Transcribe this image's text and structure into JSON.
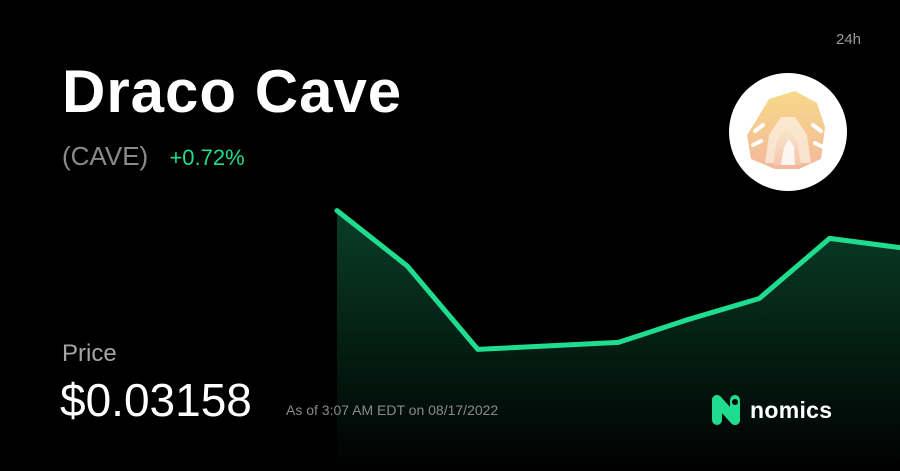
{
  "asset": {
    "name": "Draco Cave",
    "symbol": "(CAVE)",
    "change": "+0.72%",
    "timeframe": "24h",
    "logo_icon": "draco-cave-logo-icon"
  },
  "price": {
    "label": "Price",
    "value": "$0.03158",
    "as_of": "As of 3:07 AM EDT on 08/17/2022"
  },
  "brand": {
    "name": "nomics",
    "icon": "nomics-logo-icon"
  },
  "colors": {
    "background": "#000000",
    "positive": "#1fdc8f",
    "muted": "#8a8a8a"
  },
  "chart_data": {
    "type": "line",
    "x": [
      0,
      1,
      2,
      3,
      4,
      5,
      6,
      7,
      8
    ],
    "values": [
      100,
      76,
      40,
      41.5,
      43,
      53,
      62,
      88,
      84
    ],
    "ylim": [
      38,
      102
    ],
    "grid": false,
    "area_fill": true
  }
}
